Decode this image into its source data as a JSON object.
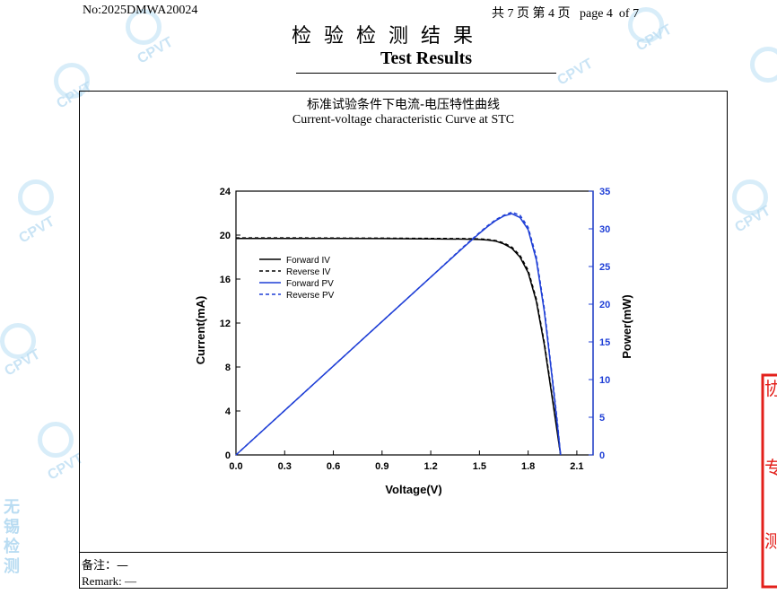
{
  "header": {
    "report_no": "No:2025DMWA20024",
    "page_info": "共 7 页 第 4 页   page 4  of 7",
    "title_cn": "检验检测结果",
    "title_en": "Test Results"
  },
  "watermark": {
    "text": "CPVT",
    "side_text": "无锡检测"
  },
  "chart_data": {
    "type": "line",
    "title": "标准试验条件下电流-电压特性曲线",
    "subtitle": "Current-voltage characteristic Curve at STC",
    "xlabel": "Voltage(V)",
    "ylabel": "Current(mA)",
    "y2label": "Power(mW)",
    "xlim": [
      0,
      2.2
    ],
    "ylim": [
      0,
      24
    ],
    "y2lim": [
      0,
      35
    ],
    "xticks": [
      "0.0",
      "0.3",
      "0.6",
      "0.9",
      "1.2",
      "1.5",
      "1.8",
      "2.1"
    ],
    "yticks": [
      "0",
      "4",
      "8",
      "12",
      "16",
      "20",
      "24"
    ],
    "y2ticks": [
      "0",
      "5",
      "10",
      "15",
      "20",
      "25",
      "30",
      "35"
    ],
    "legend_position": "upper-left",
    "series": [
      {
        "name": "Forward IV",
        "axis": "left",
        "color": "#000000",
        "dash": "solid",
        "x": [
          0.0,
          0.3,
          0.6,
          0.9,
          1.2,
          1.4,
          1.5,
          1.55,
          1.6,
          1.65,
          1.7,
          1.75,
          1.8,
          1.85,
          1.9,
          1.95,
          1.98,
          2.0
        ],
        "y": [
          19.7,
          19.7,
          19.7,
          19.68,
          19.66,
          19.63,
          19.6,
          19.55,
          19.45,
          19.2,
          18.8,
          18.0,
          16.6,
          14.0,
          10.0,
          5.0,
          2.0,
          0.0
        ]
      },
      {
        "name": "Reverse IV",
        "axis": "left",
        "color": "#000000",
        "dash": "dashed",
        "x": [
          0.0,
          0.3,
          0.6,
          0.9,
          1.2,
          1.4,
          1.5,
          1.55,
          1.6,
          1.65,
          1.7,
          1.75,
          1.8,
          1.85,
          1.9,
          1.95,
          1.98,
          2.0
        ],
        "y": [
          19.75,
          19.75,
          19.73,
          19.72,
          19.7,
          19.68,
          19.65,
          19.6,
          19.5,
          19.28,
          18.9,
          18.15,
          16.8,
          14.2,
          10.2,
          5.2,
          2.2,
          0.0
        ]
      },
      {
        "name": "Forward PV",
        "axis": "right",
        "color": "#1f3fd6",
        "dash": "solid",
        "x": [
          0.0,
          0.3,
          0.6,
          0.9,
          1.2,
          1.4,
          1.5,
          1.55,
          1.6,
          1.65,
          1.7,
          1.75,
          1.8,
          1.85,
          1.9,
          1.95,
          1.98,
          2.0
        ],
        "y": [
          0.0,
          5.9,
          11.8,
          17.7,
          23.6,
          27.5,
          29.4,
          30.3,
          31.1,
          31.7,
          32.0,
          31.5,
          29.9,
          25.9,
          19.0,
          9.8,
          4.0,
          0.0
        ]
      },
      {
        "name": "Reverse PV",
        "axis": "right",
        "color": "#1f3fd6",
        "dash": "dashed",
        "x": [
          0.0,
          0.3,
          0.6,
          0.9,
          1.2,
          1.4,
          1.5,
          1.55,
          1.6,
          1.65,
          1.7,
          1.75,
          1.8,
          1.85,
          1.9,
          1.95,
          1.98,
          2.0
        ],
        "y": [
          0.0,
          5.9,
          11.8,
          17.7,
          23.6,
          27.6,
          29.5,
          30.4,
          31.2,
          31.8,
          32.2,
          31.8,
          30.2,
          26.3,
          19.4,
          10.1,
          4.4,
          0.0
        ]
      }
    ]
  },
  "remarks": {
    "label_cn": "备注：",
    "value_cn": "—",
    "label_en": "Remark:",
    "value_en": "—"
  },
  "stamp": {
    "text": "检测专用章",
    "color": "#e3201b"
  }
}
